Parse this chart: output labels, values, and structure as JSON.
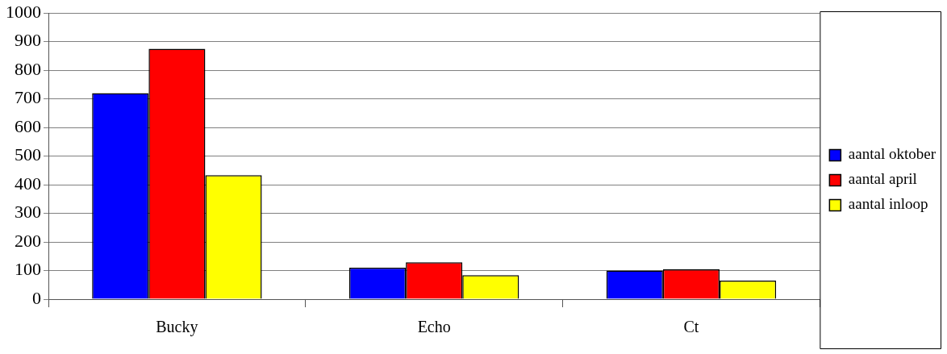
{
  "chart_data": {
    "type": "bar",
    "categories": [
      "Bucky",
      "Echo",
      "Ct"
    ],
    "series": [
      {
        "name": "aantal oktober",
        "color": "#0000ff",
        "values": [
          720,
          110,
          100
        ]
      },
      {
        "name": "aantal april",
        "color": "#ff0000",
        "values": [
          875,
          129,
          104
        ]
      },
      {
        "name": "aantal inloop",
        "color": "#ffff00",
        "values": [
          433,
          84,
          65
        ]
      }
    ],
    "ylim": [
      0,
      1000
    ],
    "yticks": [
      0,
      100,
      200,
      300,
      400,
      500,
      600,
      700,
      800,
      900,
      1000
    ],
    "grid": "y",
    "legend": "right"
  }
}
